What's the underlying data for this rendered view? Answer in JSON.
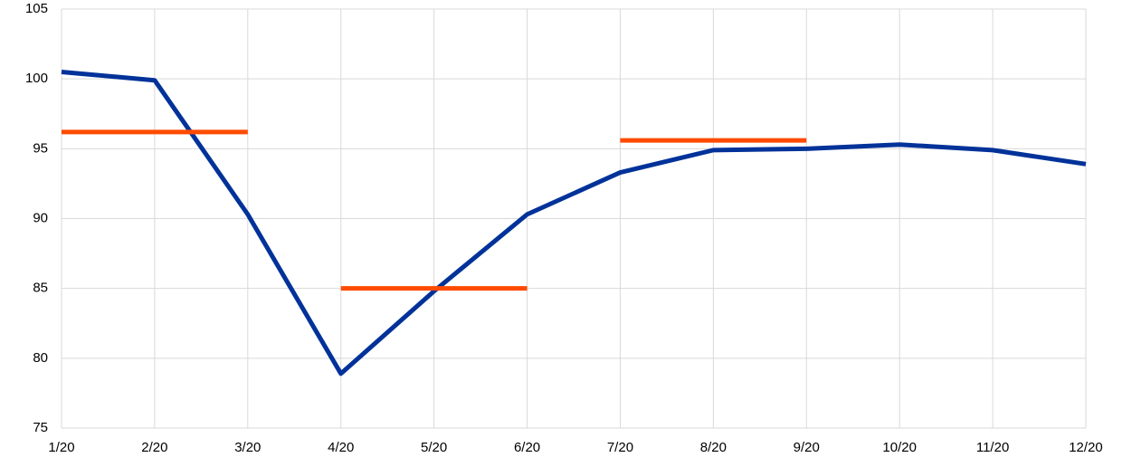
{
  "chart_data": {
    "type": "line",
    "categories": [
      "1/20",
      "2/20",
      "3/20",
      "4/20",
      "5/20",
      "6/20",
      "7/20",
      "8/20",
      "9/20",
      "10/20",
      "11/20",
      "12/20"
    ],
    "series": [
      {
        "color": "#003299",
        "values": [
          100.5,
          99.9,
          90.3,
          78.9,
          84.8,
          90.3,
          93.3,
          94.9,
          95.0,
          95.3,
          94.9,
          93.9
        ]
      },
      {
        "color": "#ff4b00",
        "values": [
          96.2,
          96.2,
          96.2,
          null,
          null,
          null,
          null,
          null,
          null,
          null,
          null,
          null
        ]
      },
      {
        "color": "#ff4b00",
        "values": [
          null,
          null,
          null,
          85.0,
          85.0,
          85.0,
          null,
          null,
          null,
          null,
          null,
          null
        ]
      },
      {
        "color": "#ff4b00",
        "values": [
          null,
          null,
          null,
          null,
          null,
          null,
          95.6,
          95.6,
          95.6,
          null,
          null,
          null
        ]
      }
    ],
    "ylim": [
      75,
      105
    ],
    "yticks": [
      75,
      80,
      85,
      90,
      95,
      100,
      105
    ],
    "grid": true
  }
}
